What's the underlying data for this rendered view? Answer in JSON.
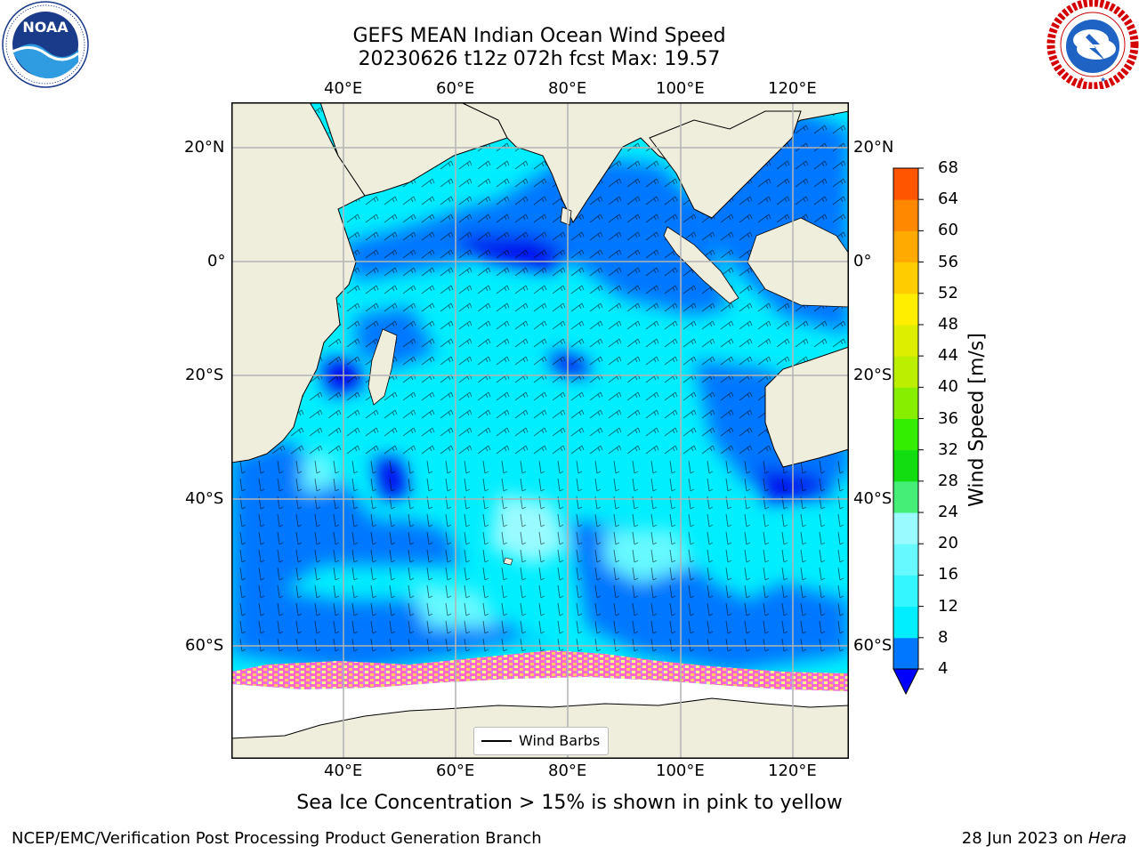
{
  "title": {
    "line1": "GEFS MEAN Indian Ocean Wind Speed",
    "line2": "20230626 t12z 072h fcst   Max: 19.57"
  },
  "logos": {
    "left": "noaa-logo",
    "right": "nws-logo",
    "left_text": "NOAA",
    "left_ring": "NATIONAL OCEANIC AND ATMOSPHERIC ADMINISTRATION · U.S. DEPARTMENT OF COMMERCE",
    "right_ring": "NATIONAL WEATHER SERVICE"
  },
  "map": {
    "region": "Indian Ocean",
    "lon_ticks": [
      "40°E",
      "60°E",
      "80°E",
      "100°E",
      "120°E"
    ],
    "lat_ticks": [
      "20°N",
      "0°",
      "20°S",
      "40°S",
      "60°S"
    ],
    "colors": {
      "land": "#efeedd",
      "ice_free": "#ffffff",
      "grid": "#b4b4b4"
    }
  },
  "legend": {
    "label": "Wind Barbs"
  },
  "colorbar": {
    "title": "Wind Speed [m/s]",
    "tick_labels": [
      "4",
      "8",
      "12",
      "16",
      "20",
      "24",
      "28",
      "32",
      "36",
      "40",
      "44",
      "48",
      "52",
      "56",
      "60",
      "64",
      "68"
    ],
    "colors": [
      "#0077ff",
      "#00eeff",
      "#33f6ff",
      "#66f9ff",
      "#99fbff",
      "#44ee77",
      "#11dd11",
      "#33ee00",
      "#88ee00",
      "#bbee00",
      "#ddee00",
      "#ffee00",
      "#ffcc00",
      "#ffaa00",
      "#ff8800",
      "#ff5500",
      "#ff2200",
      "#ff0000"
    ],
    "extend_color": "#0000ff"
  },
  "chart_data": {
    "type": "heatmap",
    "title": "GEFS MEAN Indian Ocean Wind Speed",
    "subtitle": "20230626 t12z 072h fcst   Max: 19.57",
    "xlabel": "",
    "ylabel": "",
    "colorbar_label": "Wind Speed [m/s]",
    "xlim": [
      20,
      130
    ],
    "ylim": [
      -80,
      28
    ],
    "max_value": 19.57,
    "levels": [
      4,
      8,
      12,
      16,
      20,
      24,
      28,
      32,
      36,
      40,
      44,
      48,
      52,
      56,
      60,
      64,
      68
    ],
    "legend": [
      "Wind Barbs"
    ],
    "grid": true
  },
  "notes": {
    "sea_ice": "Sea Ice Concentration > 15% is shown in pink to yellow"
  },
  "credits": {
    "left": "NCEP/EMC/Verification Post Processing Product Generation Branch",
    "date": "28 Jun 2023 on ",
    "machine": "Hera"
  }
}
